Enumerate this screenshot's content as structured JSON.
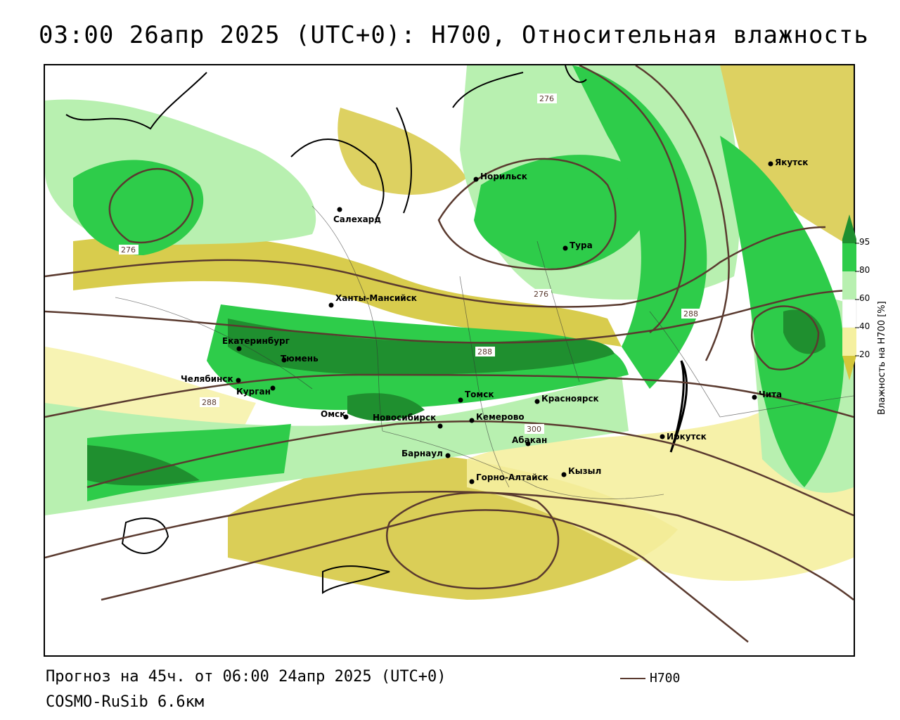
{
  "title": "03:00 26апр 2025 (UTC+0): H700, Относительная влажность",
  "footer": {
    "forecast": "Прогноз на 45ч. от 06:00 24апр 2025 (UTC+0)",
    "model": "COSMO-RuSib 6.6км",
    "contour_legend": "H700"
  },
  "colorbar": {
    "title": "Влажность на H700 [%]",
    "ticks": [
      "95",
      "80",
      "60",
      "40",
      "20"
    ],
    "colors": {
      "c95": "#1f8f2f",
      "c80": "#2ecc4a",
      "c60": "#b8f0b0",
      "c40": "#ffffff",
      "c20": "#f5f0a0",
      "c0": "#d4c63a"
    }
  },
  "cities": [
    {
      "name": "Якутск"
    },
    {
      "name": "Норильск"
    },
    {
      "name": "Салехард"
    },
    {
      "name": "Тура"
    },
    {
      "name": "Ханты-Мансийск"
    },
    {
      "name": "Екатеринбург"
    },
    {
      "name": "Тюмень"
    },
    {
      "name": "Челябинск"
    },
    {
      "name": "Курган"
    },
    {
      "name": "Омск"
    },
    {
      "name": "Томск"
    },
    {
      "name": "Красноярск"
    },
    {
      "name": "Новосибирск"
    },
    {
      "name": "Кемерово"
    },
    {
      "name": "Абакан"
    },
    {
      "name": "Барнаул"
    },
    {
      "name": "Горно-Алтайск"
    },
    {
      "name": "Кызыл"
    },
    {
      "name": "Иркутск"
    },
    {
      "name": "Чита"
    }
  ],
  "contour_labels": [
    "276",
    "276",
    "276",
    "288",
    "288",
    "288",
    "300"
  ]
}
